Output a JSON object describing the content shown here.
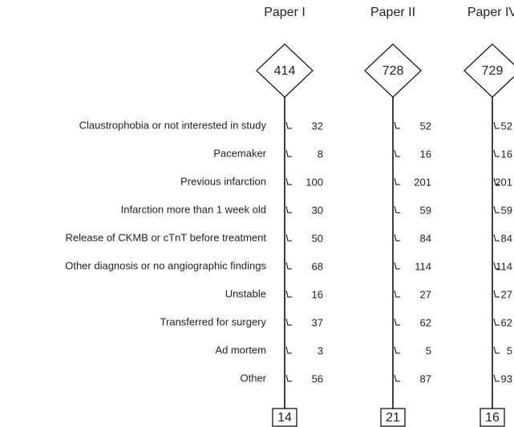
{
  "rows": [
    "Claustrophobia or not interested in study",
    "Pacemaker",
    "Previous infarction",
    "Infarction more than 1 week old",
    "Release of CKMB or cTnT before treatment",
    "Other diagnosis or no angiographic findings",
    "Unstable",
    "Transferred for surgery",
    "Ad mortem",
    "Other"
  ],
  "columns": [
    {
      "title": "Paper I",
      "start": "414",
      "counts": [
        "32",
        "8",
        "100",
        "30",
        "50",
        "68",
        "16",
        "37",
        "3",
        "56"
      ],
      "end": "14"
    },
    {
      "title": "Paper II",
      "start": "728",
      "counts": [
        "52",
        "16",
        "201",
        "59",
        "84",
        "114",
        "27",
        "62",
        "5",
        "87"
      ],
      "end": "21"
    },
    {
      "title": "Paper IV",
      "start": "729",
      "counts": [
        "52",
        "16",
        "201",
        "59",
        "84",
        "114",
        "27",
        "62",
        "5",
        "93"
      ],
      "end": "16"
    }
  ]
}
